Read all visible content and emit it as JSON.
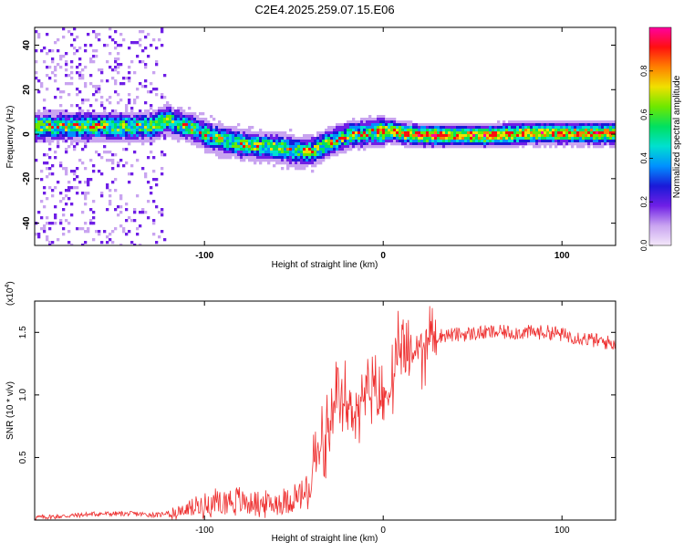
{
  "title": "C2E4.2025.259.07.15.E06",
  "chart_data": [
    {
      "type": "heatmap",
      "xlabel": "Height of straight line (km)",
      "ylabel": "Frequency (Hz)",
      "xlim": [
        -195,
        130
      ],
      "ylim": [
        -50,
        48
      ],
      "x_ticks": [
        -100,
        0,
        100
      ],
      "x_tick_labels": [
        "-100",
        "0",
        "100"
      ],
      "y_ticks": [
        -40,
        -20,
        0,
        20,
        40
      ],
      "y_tick_labels": [
        "-40",
        "-20",
        "0",
        "20",
        "40"
      ],
      "ridge": {
        "x": [
          -195,
          -160,
          -130,
          -122,
          -110,
          -95,
          -80,
          -65,
          -55,
          -48,
          -40,
          -30,
          -20,
          -10,
          0,
          5,
          10,
          20,
          40,
          60,
          80,
          100,
          130
        ],
        "y": [
          4,
          4,
          4,
          7,
          4,
          -1,
          -4,
          -5,
          -6,
          -7,
          -7,
          -3,
          0,
          1,
          2,
          2,
          1,
          0,
          0,
          0,
          1,
          1,
          1
        ]
      },
      "colorbar": {
        "label": "Normalized spectral amplitude",
        "range": [
          0,
          1
        ],
        "ticks": [
          0.0,
          0.2,
          0.4,
          0.6,
          0.8
        ],
        "tick_labels": [
          "0.0",
          "0.2",
          "0.4",
          "0.6",
          "0.8"
        ],
        "colors": [
          "#f4e8fa",
          "#c9a4f0",
          "#6f1fe6",
          "#1a1ad8",
          "#0090ff",
          "#00e0d0",
          "#00e060",
          "#6ee800",
          "#f0e000",
          "#ff8000",
          "#ff1010",
          "#ff00a0"
        ]
      }
    },
    {
      "type": "line",
      "xlabel": "Height of straight line (km)",
      "ylabel": "SNR (10 * v/v)",
      "y_scale_label": "(x10",
      "y_scale_exp": "4",
      "y_scale_close": ")",
      "xlim": [
        -195,
        130
      ],
      "ylim": [
        0,
        1.75
      ],
      "x_ticks": [
        -100,
        0,
        100
      ],
      "x_tick_labels": [
        "-100",
        "0",
        "100"
      ],
      "y_ticks": [
        0.5,
        1.0,
        1.5
      ],
      "y_tick_labels": [
        "0.5",
        "1.0",
        "1.5"
      ],
      "color": "#ee3030",
      "series": [
        {
          "name": "SNR",
          "x": [
            -195,
            -180,
            -160,
            -140,
            -125,
            -115,
            -105,
            -95,
            -85,
            -75,
            -65,
            -55,
            -45,
            -38,
            -32,
            -28,
            -25,
            -22,
            -18,
            -15,
            -12,
            -8,
            -4,
            0,
            4,
            8,
            10,
            12,
            15,
            20,
            25,
            30,
            35,
            40,
            50,
            60,
            70,
            80,
            90,
            95,
            100,
            110,
            120,
            130
          ],
          "y": [
            0.02,
            0.03,
            0.05,
            0.05,
            0.04,
            0.1,
            0.18,
            0.24,
            0.28,
            0.24,
            0.22,
            0.26,
            0.34,
            0.48,
            0.62,
            0.78,
            0.95,
            0.92,
            0.88,
            0.9,
            0.95,
            1.0,
            1.0,
            0.95,
            1.05,
            1.2,
            1.45,
            1.25,
            1.3,
            1.38,
            1.45,
            1.47,
            1.48,
            1.48,
            1.49,
            1.5,
            1.5,
            1.5,
            1.5,
            1.5,
            1.48,
            1.46,
            1.43,
            1.41
          ]
        }
      ]
    }
  ]
}
